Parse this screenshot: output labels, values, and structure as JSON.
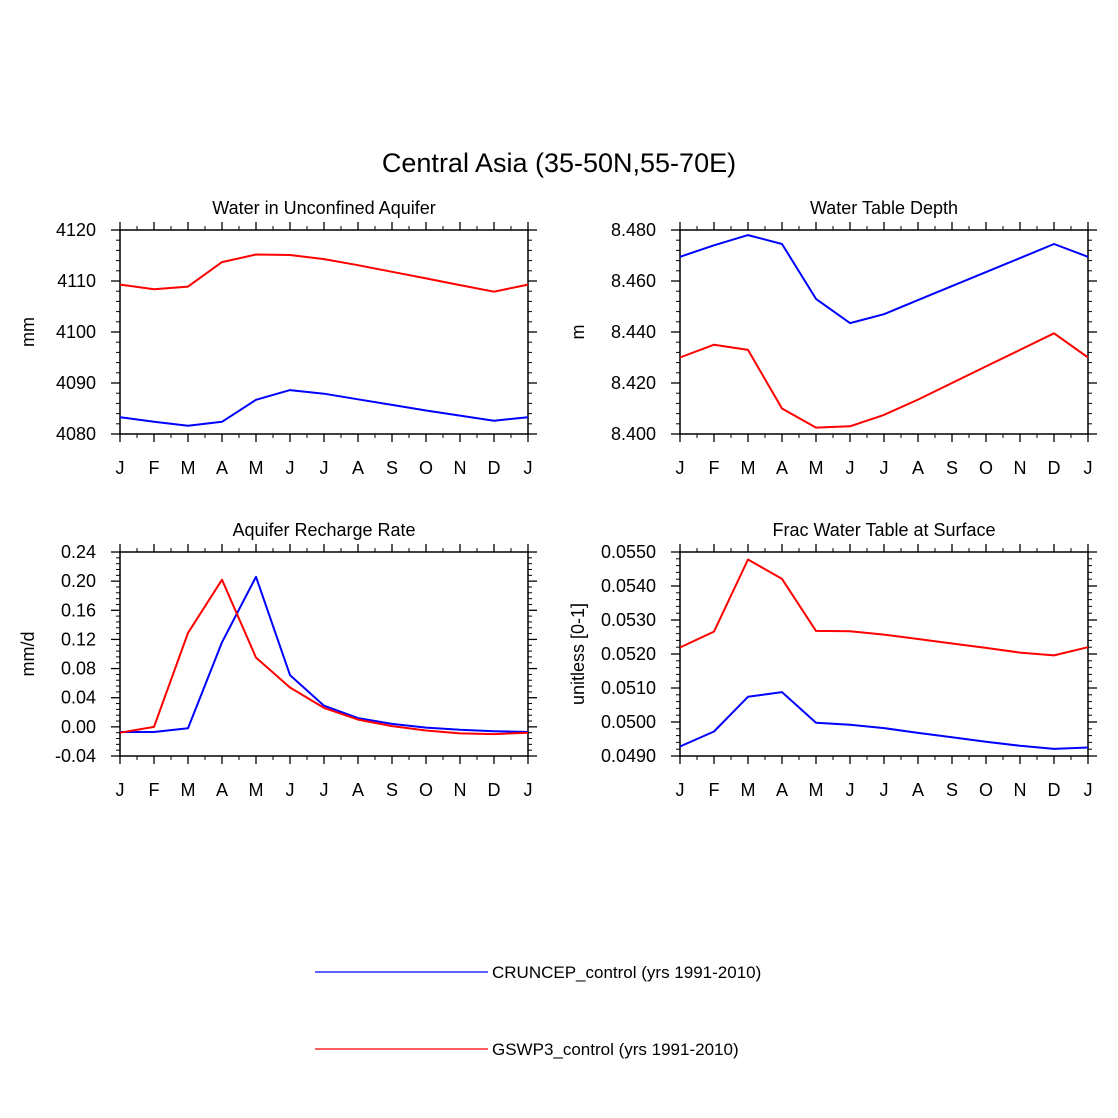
{
  "figure": {
    "title": "Central Asia (35-50N,55-70E)"
  },
  "legend": {
    "placement": "bottom-center",
    "entries": [
      {
        "label": "CRUNCEP_control (yrs 1991-2010)",
        "color": "#0000ff"
      },
      {
        "label": "GSWP3_control (yrs 1991-2010)",
        "color": "#ff0000"
      }
    ]
  },
  "chart_data": [
    {
      "type": "line",
      "title": "Water in Unconfined Aquifer",
      "xlabel": "",
      "ylabel": "mm",
      "categories": [
        "J",
        "F",
        "M",
        "A",
        "M",
        "J",
        "J",
        "A",
        "S",
        "O",
        "N",
        "D",
        "J"
      ],
      "ylim": [
        4080,
        4120
      ],
      "yticks": [
        4080,
        4090,
        4100,
        4110,
        4120
      ],
      "ytick_labels": [
        "4080",
        "4090",
        "4100",
        "4110",
        "4120"
      ],
      "series": [
        {
          "name": "CRUNCEP_control (yrs 1991-2010)",
          "color": "#0000ff",
          "values": [
            4083.3,
            4082.4,
            4081.6,
            4082.4,
            4086.7,
            4088.6,
            4087.9,
            4086.8,
            4085.7,
            4084.6,
            4083.6,
            4082.6,
            4083.3
          ]
        },
        {
          "name": "GSWP3_control (yrs 1991-2010)",
          "color": "#ff0000",
          "values": [
            4109.3,
            4108.4,
            4108.9,
            4113.7,
            4115.2,
            4115.1,
            4114.3,
            4113.1,
            4111.8,
            4110.5,
            4109.2,
            4107.9,
            4109.3
          ]
        }
      ]
    },
    {
      "type": "line",
      "title": "Water Table Depth",
      "xlabel": "",
      "ylabel": "m",
      "categories": [
        "J",
        "F",
        "M",
        "A",
        "M",
        "J",
        "J",
        "A",
        "S",
        "O",
        "N",
        "D",
        "J"
      ],
      "ylim": [
        8.4,
        8.48
      ],
      "yticks": [
        8.4,
        8.42,
        8.44,
        8.46,
        8.48
      ],
      "ytick_labels": [
        "8.400",
        "8.420",
        "8.440",
        "8.460",
        "8.480"
      ],
      "series": [
        {
          "name": "CRUNCEP_control (yrs 1991-2010)",
          "color": "#0000ff",
          "values": [
            8.4695,
            8.474,
            8.478,
            8.4745,
            8.453,
            8.4435,
            8.447,
            8.4525,
            8.458,
            8.4635,
            8.469,
            8.4745,
            8.4695
          ]
        },
        {
          "name": "GSWP3_control (yrs 1991-2010)",
          "color": "#ff0000",
          "values": [
            8.43,
            8.435,
            8.433,
            8.41,
            8.4025,
            8.403,
            8.4075,
            8.4135,
            8.42,
            8.4265,
            8.433,
            8.4395,
            8.43
          ]
        }
      ]
    },
    {
      "type": "line",
      "title": "Aquifer Recharge Rate",
      "xlabel": "",
      "ylabel": "mm/d",
      "categories": [
        "J",
        "F",
        "M",
        "A",
        "M",
        "J",
        "J",
        "A",
        "S",
        "O",
        "N",
        "D",
        "J"
      ],
      "ylim": [
        -0.04,
        0.24
      ],
      "yticks": [
        -0.04,
        0.0,
        0.04,
        0.08,
        0.12,
        0.16,
        0.2,
        0.24
      ],
      "ytick_labels": [
        "-0.04",
        "0.00",
        "0.04",
        "0.08",
        "0.12",
        "0.16",
        "0.20",
        "0.24"
      ],
      "series": [
        {
          "name": "CRUNCEP_control (yrs 1991-2010)",
          "color": "#0000ff",
          "values": [
            -0.007,
            -0.007,
            -0.002,
            0.116,
            0.206,
            0.071,
            0.029,
            0.012,
            0.004,
            -0.001,
            -0.004,
            -0.006,
            -0.007
          ]
        },
        {
          "name": "GSWP3_control (yrs 1991-2010)",
          "color": "#ff0000",
          "values": [
            -0.008,
            0.0,
            0.129,
            0.202,
            0.095,
            0.054,
            0.026,
            0.01,
            0.001,
            -0.005,
            -0.009,
            -0.01,
            -0.008
          ]
        }
      ]
    },
    {
      "type": "line",
      "title": "Frac Water Table at Surface",
      "xlabel": "",
      "ylabel": "unitless [0-1]",
      "categories": [
        "J",
        "F",
        "M",
        "A",
        "M",
        "J",
        "J",
        "A",
        "S",
        "O",
        "N",
        "D",
        "J"
      ],
      "ylim": [
        0.049,
        0.055
      ],
      "yticks": [
        0.049,
        0.05,
        0.051,
        0.052,
        0.053,
        0.054,
        0.055
      ],
      "ytick_labels": [
        "0.0490",
        "0.0500",
        "0.0510",
        "0.0520",
        "0.0530",
        "0.0540",
        "0.0550"
      ],
      "series": [
        {
          "name": "CRUNCEP_control (yrs 1991-2010)",
          "color": "#0000ff",
          "values": [
            0.04928,
            0.04972,
            0.05074,
            0.05088,
            0.04998,
            0.04992,
            0.04982,
            0.04968,
            0.04955,
            0.04942,
            0.0493,
            0.04921,
            0.04925
          ]
        },
        {
          "name": "GSWP3_control (yrs 1991-2010)",
          "color": "#ff0000",
          "values": [
            0.05219,
            0.05266,
            0.05478,
            0.05421,
            0.05268,
            0.05267,
            0.05257,
            0.05244,
            0.05231,
            0.05218,
            0.05204,
            0.05196,
            0.0522
          ]
        }
      ]
    }
  ]
}
